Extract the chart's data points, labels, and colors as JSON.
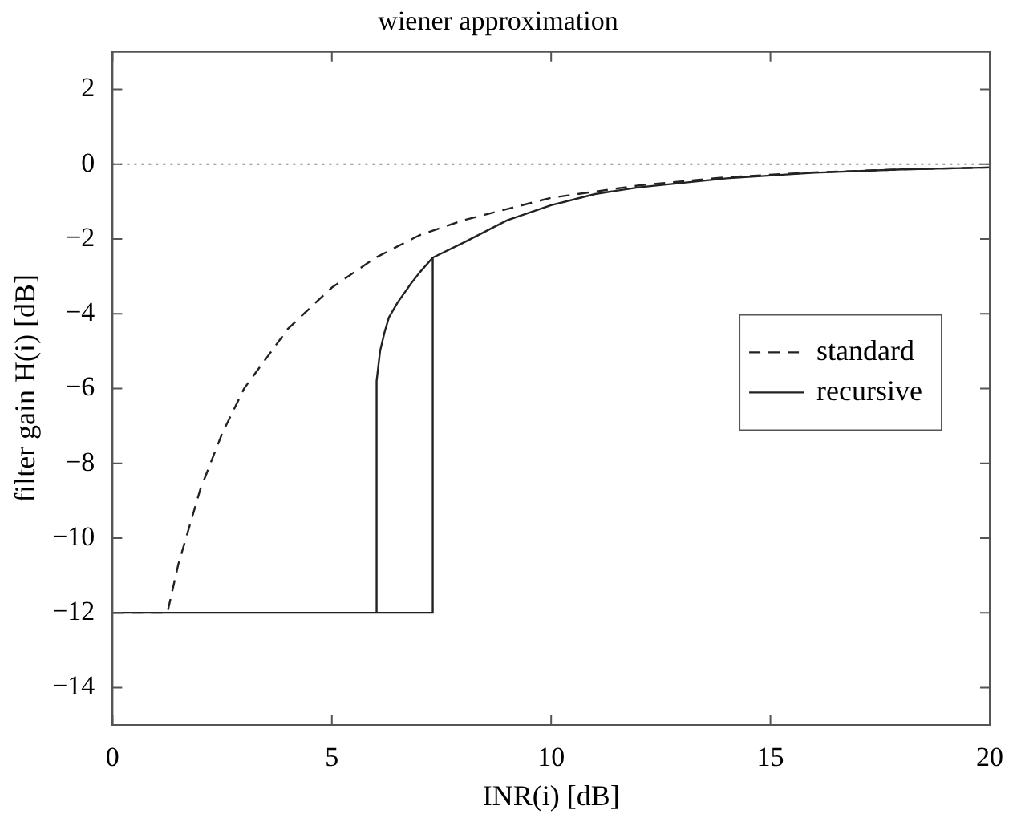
{
  "chart_data": {
    "type": "line",
    "title": "wiener approximation",
    "xlabel": "INR(i) [dB]",
    "ylabel": "filter gain H(i) [dB]",
    "xlim": [
      0,
      20
    ],
    "xticks": [
      0,
      5,
      10,
      15,
      20
    ],
    "ylim": [
      -15,
      3
    ],
    "yticks": [
      -14,
      -12,
      -10,
      -8,
      -6,
      -4,
      -2,
      0,
      2
    ],
    "legend": "right",
    "marker": "none",
    "ref_lines": [
      {
        "axis": "y",
        "value": 0,
        "color": "#888888",
        "line_style": "dotted"
      }
    ],
    "series": [
      {
        "name": "standard",
        "color": "#222222",
        "line_style": "dashed",
        "x": [
          0,
          1.25,
          1.5,
          2,
          2.5,
          3,
          3.5,
          4,
          5,
          6,
          7,
          8,
          9,
          10,
          12,
          14,
          16,
          18,
          20
        ],
        "values": [
          -12,
          -12,
          -10.7,
          -8.7,
          -7.2,
          -6.0,
          -5.2,
          -4.4,
          -3.3,
          -2.5,
          -1.9,
          -1.5,
          -1.2,
          -0.9,
          -0.57,
          -0.35,
          -0.22,
          -0.14,
          -0.09
        ]
      },
      {
        "name": "recursive",
        "color": "#222222",
        "line_style": "solid",
        "x": [
          0,
          7.3,
          7.3,
          7.3,
          6,
          6.02,
          6.05,
          6.1,
          6.2,
          6.3,
          6.5,
          6.8,
          7,
          7.3,
          8,
          9,
          10,
          11,
          12,
          14,
          16,
          18,
          20
        ],
        "values": [
          -12,
          -12,
          -2.5,
          -12,
          -12,
          -5.8,
          -5.5,
          -5.0,
          -4.5,
          -4.1,
          -3.7,
          -3.2,
          -2.9,
          -2.5,
          -2.1,
          -1.5,
          -1.1,
          -0.8,
          -0.62,
          -0.38,
          -0.23,
          -0.14,
          -0.09
        ]
      }
    ]
  }
}
